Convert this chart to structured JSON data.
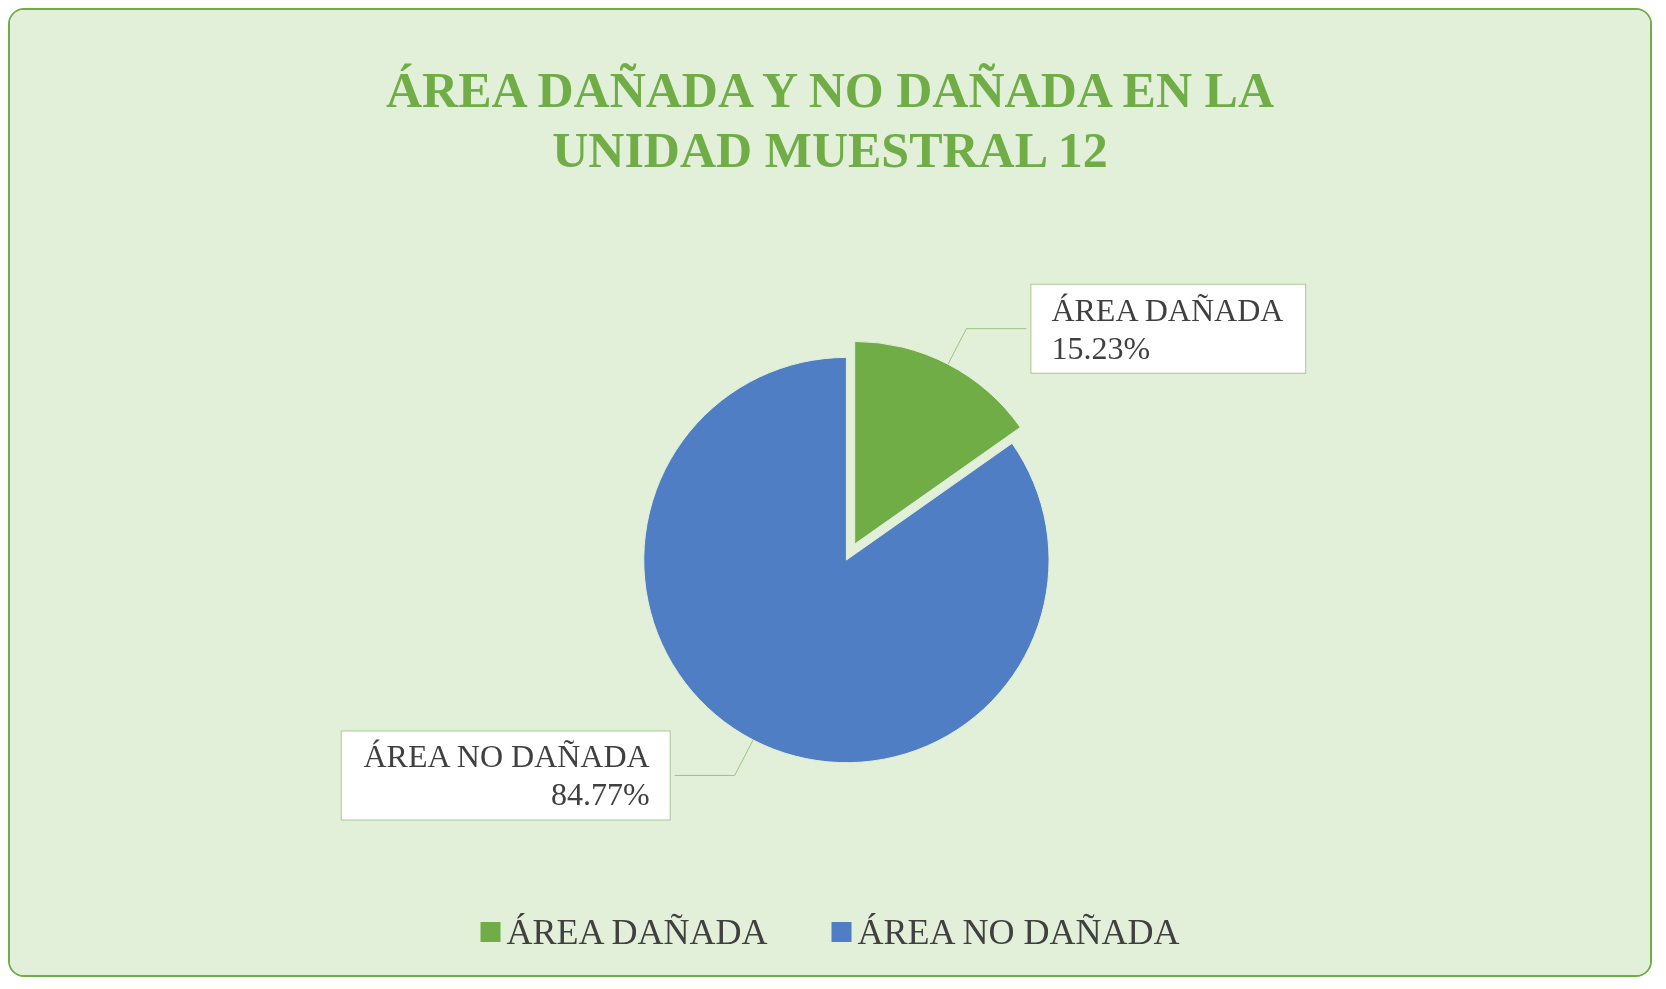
{
  "chart_data": {
    "type": "pie",
    "title": "ÁREA DAÑADA Y NO DAÑADA EN LA\nUNIDAD MUESTRAL 12",
    "categories": [
      "ÁREA DAÑADA",
      "ÁREA NO DAÑADA"
    ],
    "values": [
      15.23,
      84.77
    ],
    "colors": [
      "#70ad47",
      "#4f7ec4"
    ],
    "value_labels": [
      "15.23%",
      "84.77%"
    ],
    "legend": "bottom"
  }
}
